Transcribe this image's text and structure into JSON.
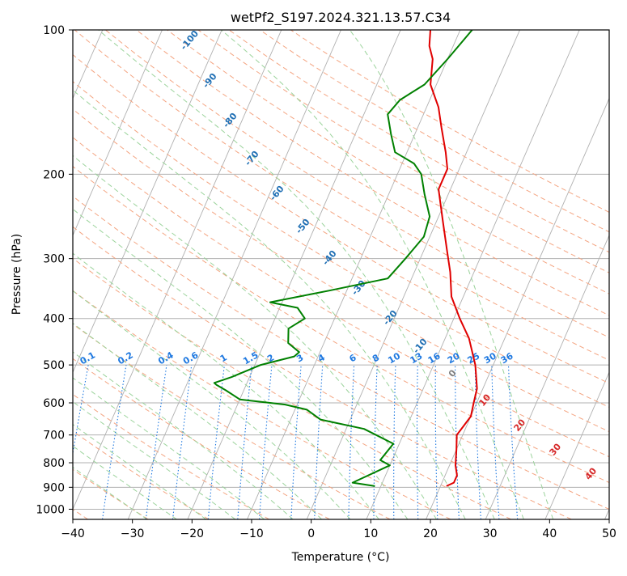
{
  "chart_data": {
    "type": "line",
    "title": "wetPf2_S197.2024.321.13.57.C34",
    "xlabel": "Temperature (°C)",
    "ylabel": "Pressure (hPa)",
    "xlim": [
      -40,
      50
    ],
    "ylim": [
      1050,
      100
    ],
    "y_scale": "log",
    "grid": true,
    "x_ticks": [
      -40,
      -30,
      -20,
      -10,
      0,
      10,
      20,
      30,
      40,
      50
    ],
    "y_ticks": [
      100,
      200,
      300,
      400,
      500,
      600,
      700,
      800,
      900,
      1000
    ],
    "skew_degrees_per_decade": 35,
    "series": [
      {
        "name": "",
        "color": "#e00000",
        "points": [
          [
            21,
            895
          ],
          [
            22,
            880
          ],
          [
            22,
            850
          ],
          [
            21,
            810
          ],
          [
            20,
            750
          ],
          [
            19,
            700
          ],
          [
            19.5,
            670
          ],
          [
            20,
            640
          ],
          [
            19.5,
            600
          ],
          [
            19,
            560
          ],
          [
            17,
            500
          ],
          [
            14,
            440
          ],
          [
            11,
            400
          ],
          [
            8,
            360
          ],
          [
            6,
            320
          ],
          [
            4,
            290
          ],
          [
            1,
            250
          ],
          [
            -2,
            215
          ],
          [
            -2,
            200
          ],
          [
            -2,
            195
          ],
          [
            -3.5,
            180
          ],
          [
            -6,
            160
          ],
          [
            -8,
            145
          ],
          [
            -11,
            130
          ],
          [
            -12.5,
            115
          ],
          [
            -14,
            108
          ],
          [
            -15,
            100
          ]
        ]
      },
      {
        "name": "",
        "color": "#008000",
        "points": [
          [
            9,
            895
          ],
          [
            5,
            880
          ],
          [
            10,
            810
          ],
          [
            8,
            790
          ],
          [
            9,
            730
          ],
          [
            3,
            680
          ],
          [
            -5,
            650
          ],
          [
            -8,
            620
          ],
          [
            -12,
            605
          ],
          [
            -20,
            590
          ],
          [
            -23,
            565
          ],
          [
            -25,
            550
          ],
          [
            -25.5,
            545
          ],
          [
            -23,
            530
          ],
          [
            -19,
            500
          ],
          [
            -14,
            480
          ],
          [
            -13.5,
            470
          ],
          [
            -16,
            450
          ],
          [
            -17,
            420
          ],
          [
            -15,
            400
          ],
          [
            -17,
            380
          ],
          [
            -22,
            370
          ],
          [
            -13,
            350
          ],
          [
            -4,
            330
          ],
          [
            -2.5,
            300
          ],
          [
            -1,
            270
          ],
          [
            -1.5,
            245
          ],
          [
            -4,
            220
          ],
          [
            -6,
            200
          ],
          [
            -8,
            190
          ],
          [
            -12,
            180
          ],
          [
            -14,
            165
          ],
          [
            -16,
            150
          ],
          [
            -15,
            140
          ],
          [
            -12,
            130
          ],
          [
            -10,
            115
          ],
          [
            -8,
            100
          ]
        ]
      }
    ],
    "dry_adiabat_labels": [
      "-100",
      "-90",
      "-80",
      "-70",
      "-60",
      "-50",
      "-40",
      "-30",
      "-20",
      "-10",
      "0",
      "10",
      "20",
      "30",
      "40"
    ],
    "mixing_ratio_labels": [
      "0.1",
      "0.2",
      "0.4",
      "0.6",
      "1",
      "1.5",
      "2",
      "3",
      "4",
      "6",
      "8",
      "10",
      "13",
      "16",
      "20",
      "25",
      "30",
      "36"
    ],
    "colors": {
      "isotherm": "#b0b0b0",
      "isobar": "#b0b0b0",
      "dry_adiabat": "#f4a582",
      "moist_adiabat": "#9bd39b",
      "mixing_ratio": "#1e78e0",
      "label_blue": "#1f6fb4",
      "label_red": "#d62728",
      "label_gray": "#7f7f7f"
    }
  }
}
